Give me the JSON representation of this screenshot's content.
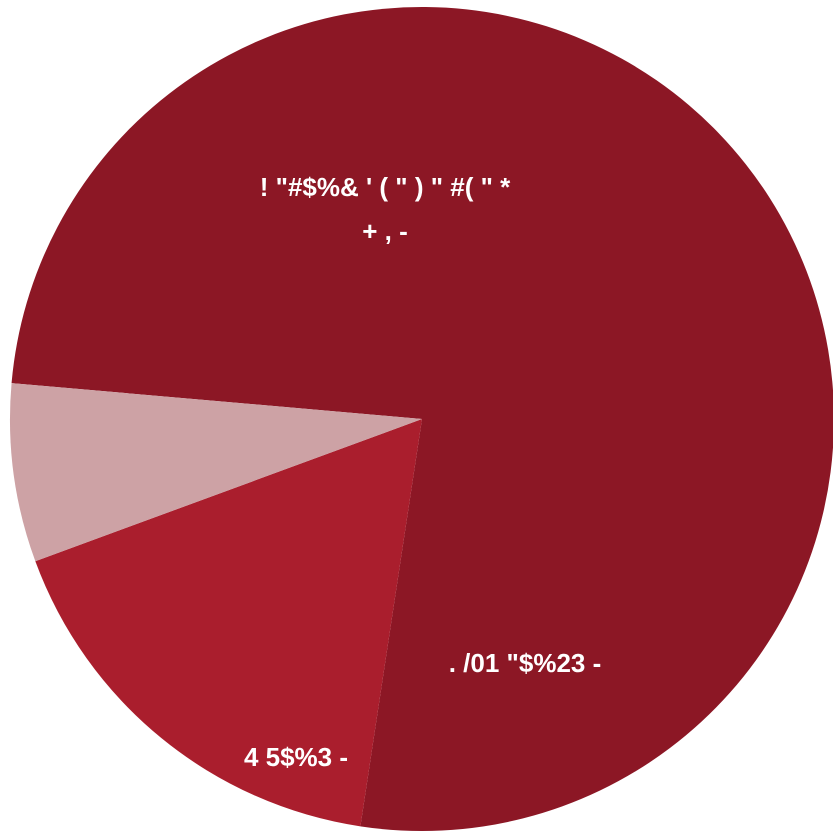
{
  "chart_data": {
    "type": "pie",
    "title": "",
    "slices": [
      {
        "label_lines": [
          "! \"#$%& ' ( \" ) \" #( \" *",
          "+ ,  -"
        ],
        "value": 76,
        "color": "#8c1725"
      },
      {
        "label_lines": [
          ". /01 \"$%23 -"
        ],
        "value": 17,
        "color": "#aa1e2d"
      },
      {
        "label_lines": [
          "4 5$%3 -"
        ],
        "value": 7,
        "color": "#cda2a5"
      }
    ]
  }
}
